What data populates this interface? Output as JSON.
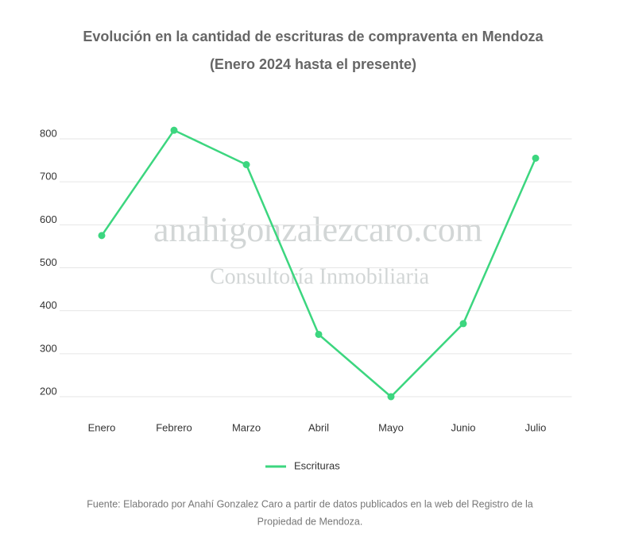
{
  "chart_data": {
    "type": "line",
    "title": "Evolución en la cantidad de escrituras de compraventa en Mendoza",
    "subtitle": "(Enero 2024 hasta el presente)",
    "categories": [
      "Enero",
      "Febrero",
      "Marzo",
      "Abril",
      "Mayo",
      "Junio",
      "Julio"
    ],
    "series": [
      {
        "name": "Escrituras",
        "color": "#3cd67f",
        "values": [
          575,
          820,
          740,
          345,
          200,
          370,
          755
        ]
      }
    ],
    "ylim": [
      200,
      800
    ],
    "yticks": [
      200,
      300,
      400,
      500,
      600,
      700,
      800
    ],
    "grid": true,
    "legend": "bottom",
    "watermark": [
      "anahigonzalezcaro.com",
      "Consultoría Inmobiliaria"
    ],
    "source": [
      "Fuente: Elaborado por Anahí Gonzalez Caro a partir de datos publicados en la web del Registro de la",
      "Propiedad de Mendoza."
    ]
  }
}
